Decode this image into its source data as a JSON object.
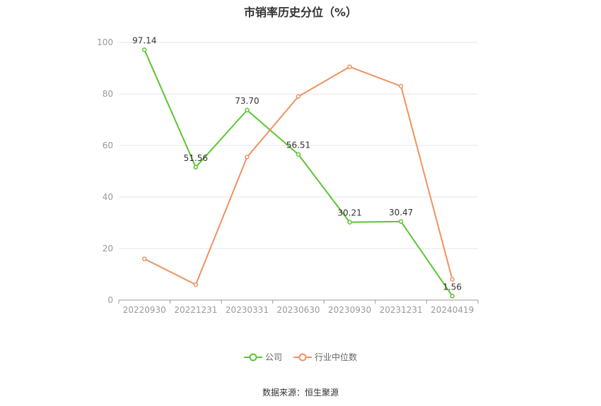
{
  "chart_data": {
    "type": "line",
    "title": "市销率历史分位（%）",
    "categories": [
      "20220930",
      "20221231",
      "20230331",
      "20230630",
      "20230930",
      "20231231",
      "20240419"
    ],
    "series": [
      {
        "name": "公司",
        "color": "#5cc530",
        "values": [
          97.14,
          51.56,
          73.7,
          56.51,
          30.21,
          30.47,
          1.56
        ],
        "labels": [
          "97.14",
          "51.56",
          "73.70",
          "56.51",
          "30.21",
          "30.47",
          "1.56"
        ],
        "show_labels": true
      },
      {
        "name": "行业中位数",
        "color": "#f0915f",
        "values": [
          16,
          6,
          55.5,
          79,
          90.5,
          83,
          8
        ],
        "show_labels": false
      }
    ],
    "ylim": [
      0,
      100
    ],
    "yticks": [
      0,
      20,
      40,
      60,
      80,
      100
    ],
    "grid": true,
    "legend": "bottom-center",
    "source": "数据来源：恒生聚源"
  }
}
